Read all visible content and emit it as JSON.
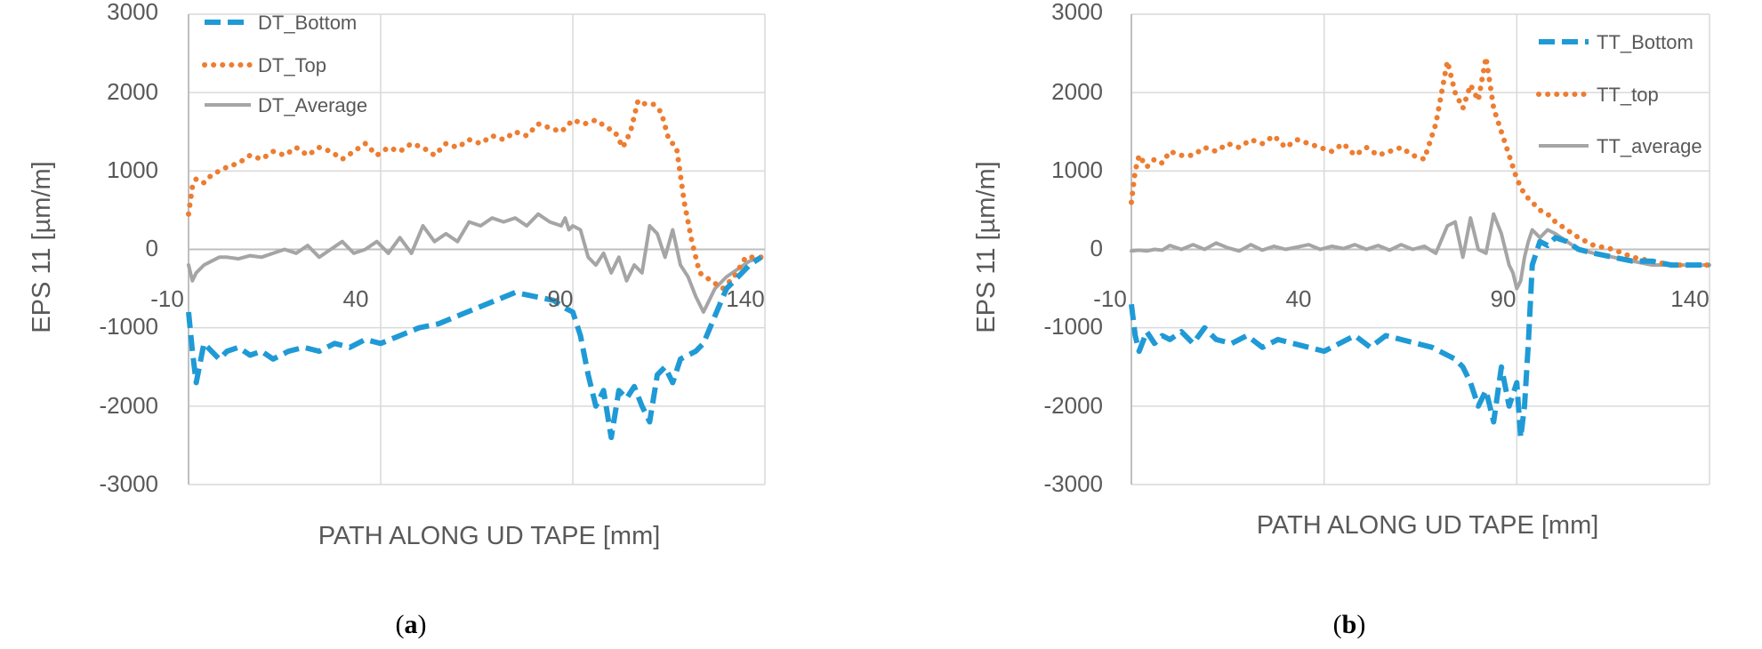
{
  "colors": {
    "bottom": "#1f9ad6",
    "top": "#ed7d31",
    "average": "#a5a5a5",
    "grid": "#d9d9d9",
    "axis": "#bfbfbf",
    "text": "#595959"
  },
  "chart_data": [
    {
      "type": "line",
      "panel": "a",
      "caption": {
        "open": "(",
        "letter": "a",
        "close": ")"
      },
      "xlabel": "PATH ALONG UD TAPE [mm]",
      "ylabel": "EPS 11 [µm/m]",
      "xlim": [
        -10,
        140
      ],
      "ylim": [
        -3000,
        3000
      ],
      "x_ticks": [
        "-10",
        "40",
        "90",
        "140"
      ],
      "y_ticks": [
        "3000",
        "2000",
        "1000",
        "0",
        "-1000",
        "-2000",
        "-3000"
      ],
      "x_tick_values": [
        -10,
        40,
        90,
        140
      ],
      "y_tick_values": [
        3000,
        2000,
        1000,
        0,
        -1000,
        -2000,
        -3000
      ],
      "legend_position": "top-left",
      "series": [
        {
          "name": "DT_Bottom",
          "style": "dashed",
          "x": [
            -10,
            -9,
            -8,
            -6,
            -4,
            -2,
            0,
            3,
            6,
            9,
            12,
            16,
            20,
            24,
            28,
            32,
            36,
            40,
            45,
            50,
            55,
            60,
            65,
            70,
            75,
            80,
            85,
            88,
            90,
            92,
            94,
            96,
            98,
            100,
            102,
            104,
            106,
            108,
            110,
            112,
            114,
            116,
            118,
            120,
            122,
            124,
            127,
            130,
            133,
            136,
            139
          ],
          "y": [
            -800,
            -1300,
            -1700,
            -1200,
            -1300,
            -1400,
            -1300,
            -1250,
            -1350,
            -1300,
            -1400,
            -1300,
            -1250,
            -1300,
            -1200,
            -1250,
            -1150,
            -1200,
            -1100,
            -1000,
            -950,
            -850,
            -750,
            -650,
            -550,
            -600,
            -650,
            -750,
            -800,
            -1100,
            -1600,
            -2000,
            -1800,
            -2400,
            -1800,
            -1900,
            -1750,
            -2000,
            -2200,
            -1600,
            -1500,
            -1700,
            -1400,
            -1350,
            -1300,
            -1200,
            -850,
            -500,
            -350,
            -200,
            -100
          ]
        },
        {
          "name": "DT_Top",
          "style": "dotted",
          "x": [
            -10,
            -9,
            -8,
            -6,
            -4,
            -2,
            0,
            3,
            6,
            9,
            12,
            15,
            18,
            21,
            24,
            27,
            30,
            33,
            36,
            39,
            42,
            45,
            48,
            51,
            54,
            57,
            60,
            63,
            66,
            69,
            72,
            75,
            78,
            81,
            84,
            87,
            90,
            93,
            96,
            99,
            101,
            103,
            105,
            107,
            109,
            111,
            113,
            115,
            117,
            119,
            121,
            123,
            126,
            129,
            132,
            135,
            139
          ],
          "y": [
            450,
            800,
            900,
            850,
            950,
            1000,
            1050,
            1100,
            1200,
            1150,
            1250,
            1200,
            1300,
            1200,
            1300,
            1250,
            1150,
            1250,
            1350,
            1200,
            1300,
            1250,
            1350,
            1300,
            1200,
            1350,
            1300,
            1400,
            1350,
            1450,
            1400,
            1500,
            1450,
            1600,
            1550,
            1500,
            1650,
            1600,
            1650,
            1550,
            1500,
            1300,
            1500,
            1900,
            1850,
            1850,
            1750,
            1400,
            1300,
            600,
            100,
            -300,
            -400,
            -500,
            -350,
            -100,
            -100
          ]
        },
        {
          "name": "DT_Average",
          "style": "solid",
          "x": [
            -10,
            -9,
            -8,
            -6,
            -4,
            -2,
            0,
            3,
            6,
            9,
            12,
            15,
            18,
            21,
            24,
            27,
            30,
            33,
            36,
            39,
            42,
            45,
            48,
            51,
            54,
            57,
            60,
            63,
            66,
            69,
            72,
            75,
            78,
            81,
            84,
            87,
            88,
            89,
            90,
            92,
            94,
            96,
            98,
            100,
            102,
            104,
            106,
            108,
            110,
            112,
            114,
            116,
            118,
            120,
            122,
            124,
            127,
            130,
            133,
            136,
            139
          ],
          "y": [
            -200,
            -400,
            -300,
            -200,
            -150,
            -100,
            -100,
            -120,
            -80,
            -100,
            -50,
            0,
            -50,
            50,
            -100,
            0,
            100,
            -50,
            0,
            100,
            -50,
            150,
            -50,
            300,
            100,
            200,
            100,
            350,
            300,
            400,
            350,
            400,
            300,
            450,
            350,
            300,
            400,
            250,
            300,
            250,
            -100,
            -200,
            -50,
            -300,
            -100,
            -400,
            -200,
            -300,
            300,
            200,
            -100,
            250,
            -200,
            -350,
            -600,
            -800,
            -500,
            -350,
            -250,
            -150,
            -100
          ]
        }
      ]
    },
    {
      "type": "line",
      "panel": "b",
      "caption": {
        "open": "(",
        "letter": "b",
        "close": ")"
      },
      "xlabel": "PATH ALONG UD TAPE [mm]",
      "ylabel": "EPS 11 [µm/m]",
      "xlim": [
        -10,
        140
      ],
      "ylim": [
        -3000,
        3000
      ],
      "x_ticks": [
        "-10",
        "40",
        "90",
        "140"
      ],
      "y_ticks": [
        "3000",
        "2000",
        "1000",
        "0",
        "-1000",
        "-2000",
        "-3000"
      ],
      "x_tick_values": [
        -10,
        40,
        90,
        140
      ],
      "y_tick_values": [
        3000,
        2000,
        1000,
        0,
        -1000,
        -2000,
        -3000
      ],
      "legend_position": "right",
      "series": [
        {
          "name": "TT_Bottom",
          "style": "dashed",
          "x": [
            -10,
            -9,
            -8,
            -6,
            -4,
            -2,
            0,
            3,
            6,
            9,
            12,
            16,
            20,
            24,
            28,
            32,
            36,
            40,
            44,
            48,
            52,
            56,
            60,
            64,
            68,
            72,
            74,
            76,
            78,
            80,
            82,
            84,
            86,
            88,
            90,
            91,
            92,
            93,
            94,
            96,
            98,
            100,
            103,
            106,
            110,
            115,
            120,
            125,
            130,
            135,
            140
          ],
          "y": [
            -700,
            -1100,
            -1300,
            -1050,
            -1200,
            -1100,
            -1150,
            -1050,
            -1200,
            -1000,
            -1150,
            -1200,
            -1100,
            -1250,
            -1150,
            -1200,
            -1250,
            -1300,
            -1200,
            -1100,
            -1250,
            -1100,
            -1150,
            -1200,
            -1250,
            -1350,
            -1400,
            -1500,
            -1700,
            -2000,
            -1800,
            -2200,
            -1500,
            -2000,
            -1700,
            -2400,
            -2000,
            -1200,
            -200,
            100,
            50,
            150,
            100,
            0,
            -50,
            -100,
            -150,
            -150,
            -200,
            -200,
            -200
          ]
        },
        {
          "name": "TT_top",
          "style": "dotted",
          "x": [
            -10,
            -9,
            -8,
            -6,
            -4,
            -2,
            0,
            3,
            6,
            9,
            12,
            15,
            18,
            21,
            24,
            27,
            30,
            33,
            36,
            39,
            42,
            45,
            48,
            51,
            54,
            57,
            60,
            63,
            66,
            69,
            72,
            74,
            76,
            78,
            80,
            82,
            84,
            86,
            88,
            90,
            92,
            94,
            96,
            98,
            100,
            103,
            106,
            110,
            115,
            120,
            125,
            130,
            135,
            140
          ],
          "y": [
            600,
            1000,
            1200,
            1050,
            1150,
            1100,
            1250,
            1200,
            1200,
            1300,
            1250,
            1350,
            1300,
            1400,
            1350,
            1450,
            1300,
            1400,
            1350,
            1300,
            1250,
            1350,
            1200,
            1300,
            1200,
            1250,
            1300,
            1200,
            1150,
            1600,
            2400,
            2000,
            1800,
            2100,
            1900,
            2450,
            1800,
            1500,
            1200,
            900,
            700,
            600,
            500,
            450,
            350,
            250,
            150,
            50,
            0,
            -100,
            -150,
            -200,
            -200,
            -200
          ]
        },
        {
          "name": "TT_average",
          "style": "solid",
          "x": [
            -10,
            -8,
            -6,
            -4,
            -2,
            0,
            3,
            6,
            9,
            12,
            15,
            18,
            21,
            24,
            27,
            30,
            33,
            36,
            39,
            42,
            45,
            48,
            51,
            54,
            57,
            60,
            63,
            66,
            69,
            72,
            74,
            76,
            78,
            80,
            82,
            84,
            86,
            88,
            89,
            90,
            91,
            92,
            93,
            94,
            96,
            98,
            100,
            103,
            106,
            110,
            115,
            120,
            125,
            130,
            135,
            140
          ],
          "y": [
            -20,
            -10,
            -20,
            0,
            -10,
            50,
            0,
            60,
            0,
            80,
            20,
            -20,
            60,
            -10,
            40,
            0,
            30,
            60,
            0,
            40,
            10,
            60,
            0,
            50,
            -10,
            60,
            0,
            40,
            -50,
            300,
            350,
            -100,
            400,
            0,
            -50,
            450,
            200,
            -200,
            -300,
            -500,
            -400,
            -100,
            100,
            250,
            150,
            250,
            200,
            100,
            0,
            -50,
            -100,
            -150,
            -200,
            -200,
            -200,
            -200
          ]
        }
      ]
    }
  ]
}
